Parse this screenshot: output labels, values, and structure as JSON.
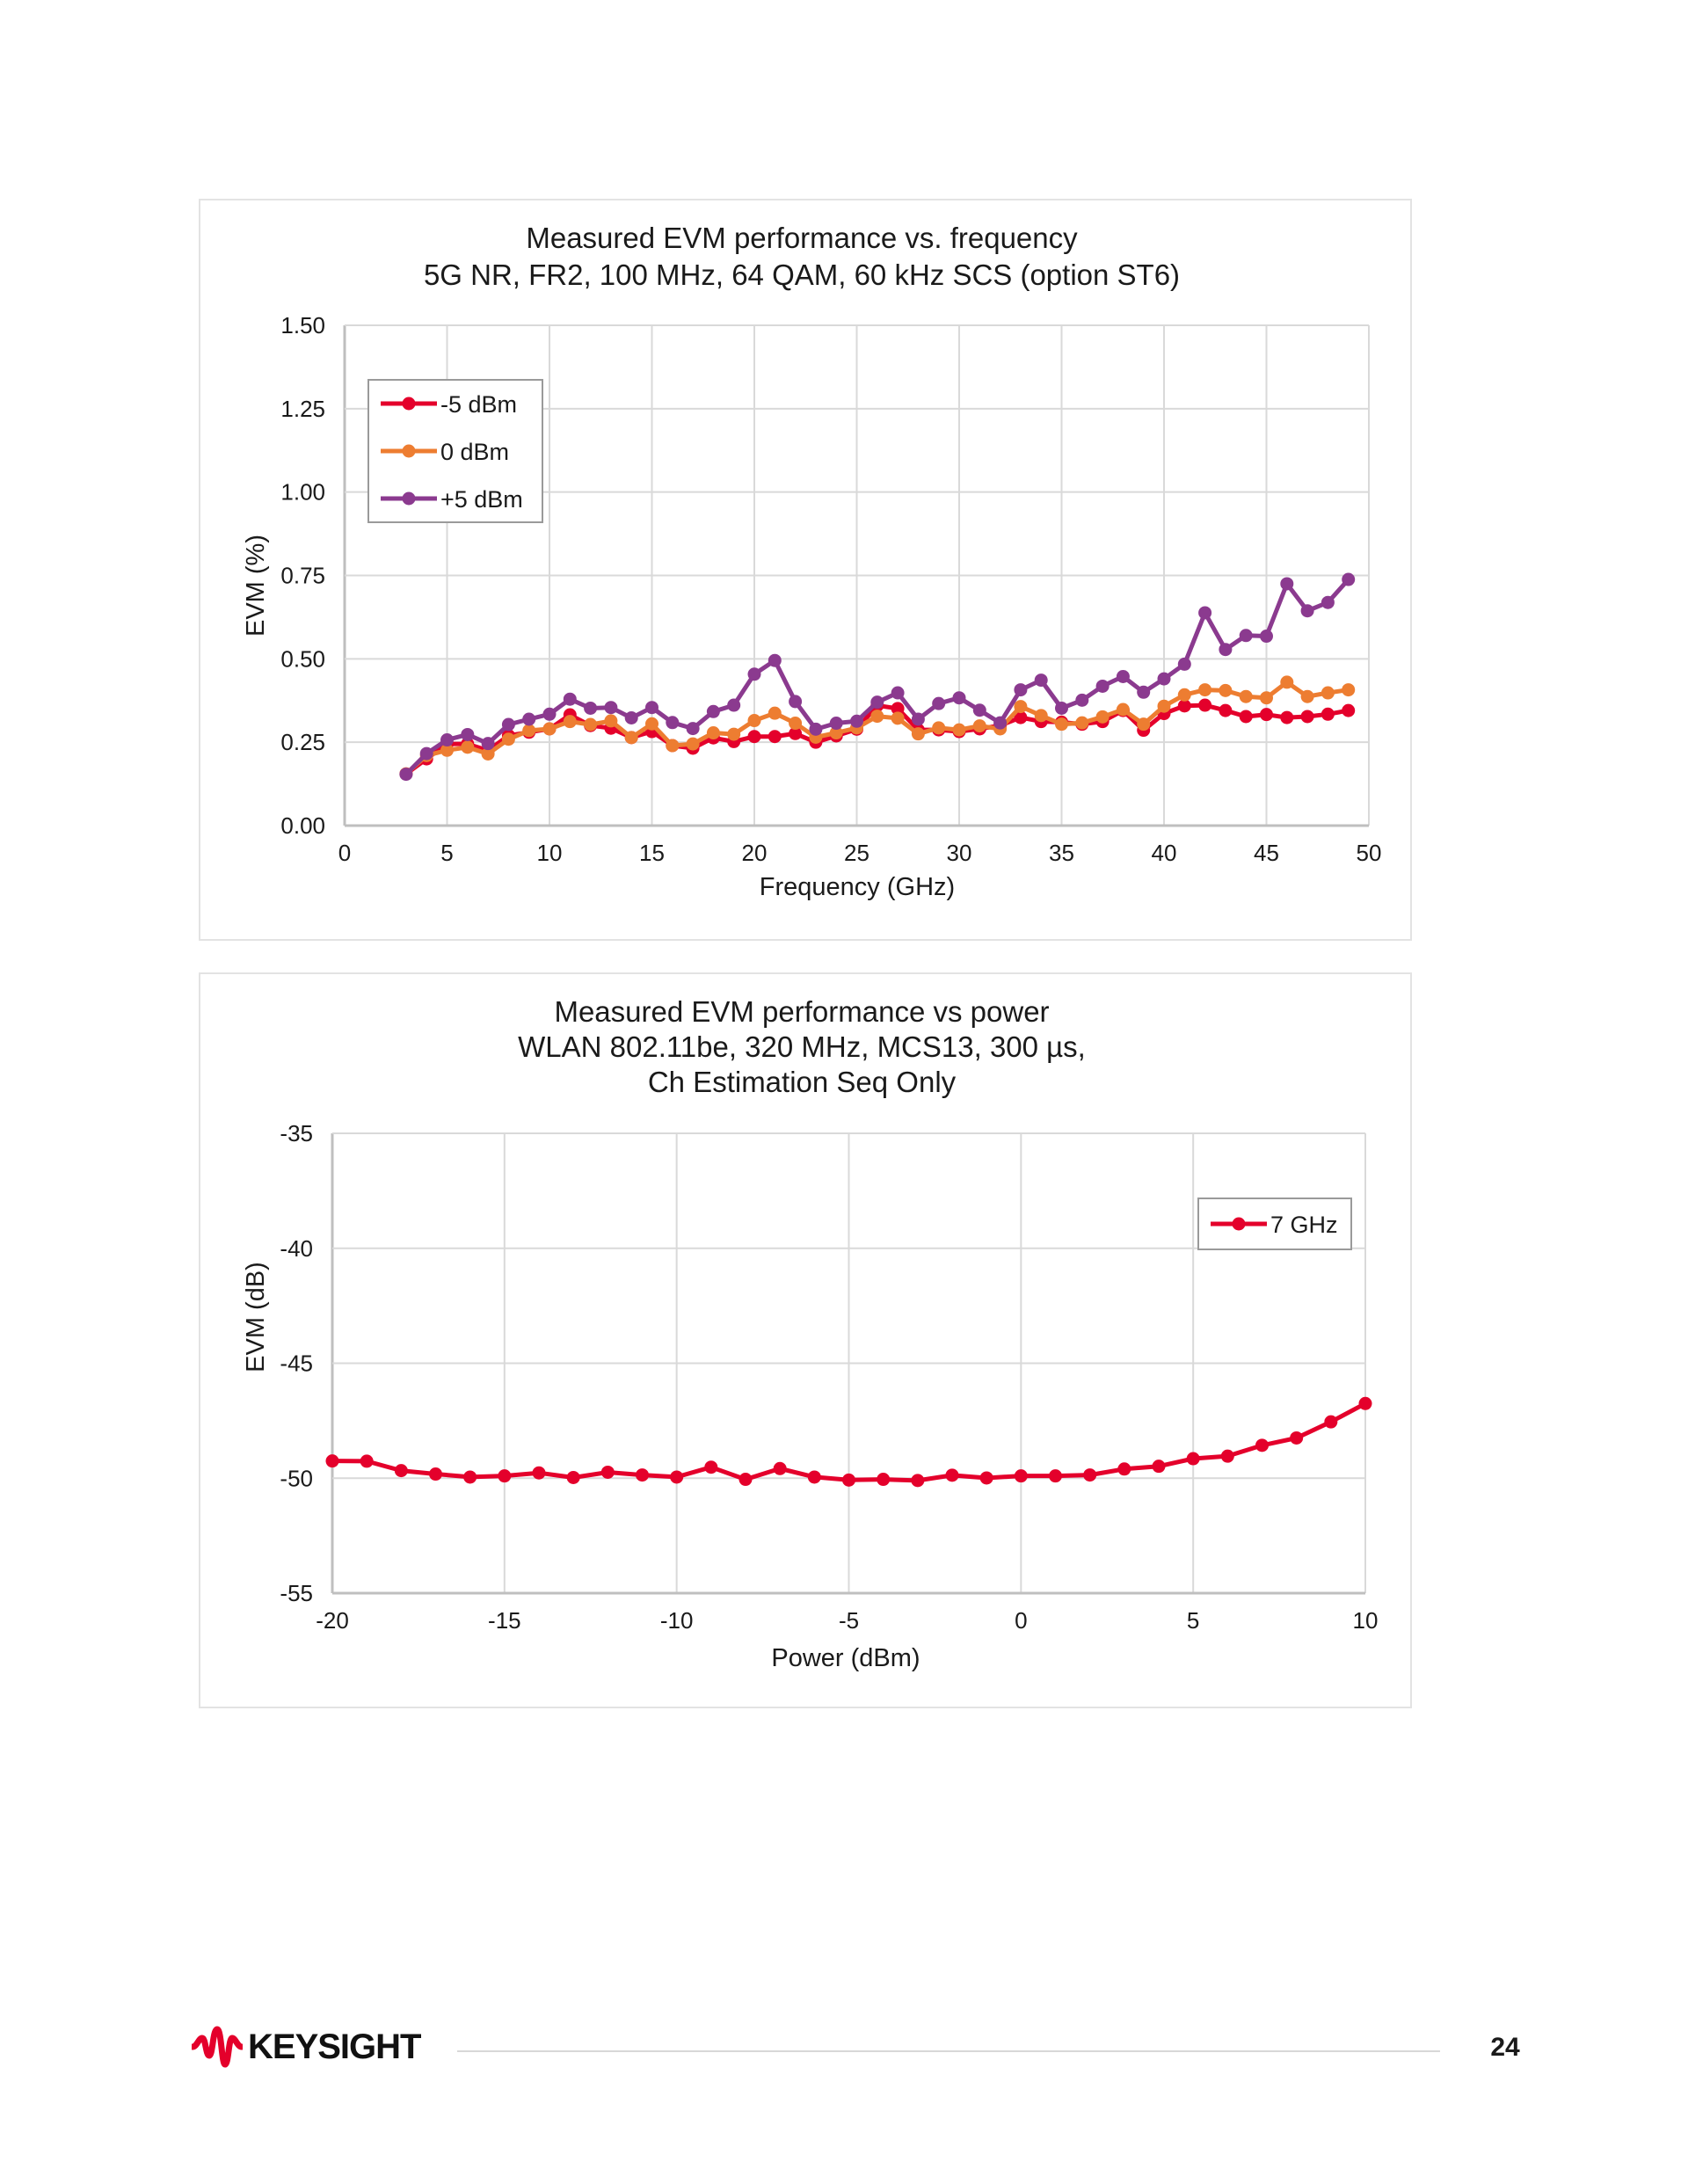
{
  "colors": {
    "series_red": "#E4002B",
    "series_orange": "#ED7D31",
    "series_purple": "#8B3A8F",
    "grid": "#d9d9d9",
    "axis": "#bfbfbf"
  },
  "footer": {
    "brand": "KEYSIGHT",
    "page_number": "24"
  },
  "chart_data": [
    {
      "type": "line",
      "title": "Measured EVM performance vs. frequency",
      "subtitle": "5G NR, FR2, 100 MHz, 64 QAM, 60 kHz SCS (option ST6)",
      "xlabel": "Frequency (GHz)",
      "ylabel": "EVM (%)",
      "xlim": [
        0,
        50
      ],
      "ylim": [
        0,
        1.5
      ],
      "xticks": [
        "0",
        "5",
        "10",
        "15",
        "20",
        "25",
        "30",
        "35",
        "40",
        "45",
        "50"
      ],
      "yticks": [
        "0.00",
        "0.25",
        "0.50",
        "0.75",
        "1.00",
        "1.25",
        "1.50"
      ],
      "grid": true,
      "legend_position": "top-left",
      "x": [
        3,
        4,
        5,
        6,
        7,
        8,
        9,
        10,
        11,
        12,
        13,
        14,
        15,
        16,
        17,
        18,
        19,
        20,
        21,
        22,
        23,
        24,
        25,
        26,
        27,
        28,
        29,
        30,
        31,
        32,
        33,
        34,
        35,
        36,
        37,
        38,
        39,
        40,
        41,
        42,
        43,
        44,
        45,
        46,
        47,
        48,
        49
      ],
      "series": [
        {
          "name": "-5 dBm",
          "color": "#E4002B",
          "values": [
            0.155,
            0.2,
            0.245,
            0.245,
            0.225,
            0.27,
            0.28,
            0.29,
            0.332,
            0.3,
            0.292,
            0.264,
            0.282,
            0.24,
            0.232,
            0.263,
            0.252,
            0.267,
            0.267,
            0.276,
            0.25,
            0.269,
            0.289,
            0.36,
            0.351,
            0.287,
            0.287,
            0.282,
            0.29,
            0.3,
            0.324,
            0.312,
            0.31,
            0.304,
            0.312,
            0.345,
            0.286,
            0.336,
            0.359,
            0.361,
            0.345,
            0.327,
            0.333,
            0.324,
            0.327,
            0.334,
            0.345
          ]
        },
        {
          "name": "0 dBm",
          "color": "#ED7D31",
          "values": [
            0.155,
            0.21,
            0.226,
            0.235,
            0.215,
            0.259,
            0.285,
            0.29,
            0.312,
            0.303,
            0.314,
            0.264,
            0.305,
            0.24,
            0.245,
            0.278,
            0.274,
            0.315,
            0.337,
            0.307,
            0.265,
            0.278,
            0.293,
            0.328,
            0.322,
            0.275,
            0.293,
            0.287,
            0.299,
            0.29,
            0.357,
            0.33,
            0.304,
            0.308,
            0.326,
            0.348,
            0.304,
            0.358,
            0.392,
            0.407,
            0.405,
            0.387,
            0.383,
            0.43,
            0.387,
            0.398,
            0.407
          ]
        },
        {
          "name": "+5 dBm",
          "color": "#8B3A8F",
          "values": [
            0.154,
            0.216,
            0.257,
            0.273,
            0.246,
            0.303,
            0.319,
            0.334,
            0.379,
            0.352,
            0.354,
            0.323,
            0.354,
            0.309,
            0.291,
            0.342,
            0.361,
            0.454,
            0.495,
            0.372,
            0.289,
            0.307,
            0.313,
            0.37,
            0.398,
            0.319,
            0.366,
            0.383,
            0.346,
            0.308,
            0.407,
            0.436,
            0.352,
            0.376,
            0.418,
            0.447,
            0.4,
            0.44,
            0.484,
            0.638,
            0.528,
            0.57,
            0.568,
            0.725,
            0.644,
            0.669,
            0.738
          ]
        }
      ]
    },
    {
      "type": "line",
      "title": "Measured EVM performance vs power",
      "subtitle": "WLAN 802.11be, 320 MHz, MCS13, 300 µs,",
      "subtitle2": "Ch Estimation Seq Only",
      "xlabel": "Power (dBm)",
      "ylabel": "EVM (dB)",
      "xlim": [
        -20,
        10
      ],
      "ylim": [
        -55,
        -35
      ],
      "xticks": [
        "-20",
        "-15",
        "-10",
        "-5",
        "0",
        "5",
        "10"
      ],
      "yticks": [
        "-55",
        "-50",
        "-45",
        "-40",
        "-35"
      ],
      "grid": true,
      "legend_position": "top-right",
      "x": [
        -20,
        -19,
        -18,
        -17,
        -16,
        -15,
        -14,
        -13,
        -12,
        -11,
        -10,
        -9,
        -8,
        -7,
        -6,
        -5,
        -4,
        -3,
        -2,
        -1,
        0,
        1,
        2,
        3,
        4,
        5,
        6,
        7,
        8,
        9,
        10
      ],
      "series": [
        {
          "name": "7 GHz",
          "color": "#E4002B",
          "values": [
            -49.25,
            -49.26,
            -49.67,
            -49.82,
            -49.95,
            -49.9,
            -49.77,
            -49.97,
            -49.74,
            -49.86,
            -49.95,
            -49.52,
            -50.05,
            -49.58,
            -49.95,
            -50.08,
            -50.05,
            -50.1,
            -49.87,
            -49.99,
            -49.9,
            -49.9,
            -49.86,
            -49.6,
            -49.48,
            -49.15,
            -49.04,
            -48.57,
            -48.25,
            -47.55,
            -46.75
          ]
        }
      ]
    }
  ]
}
